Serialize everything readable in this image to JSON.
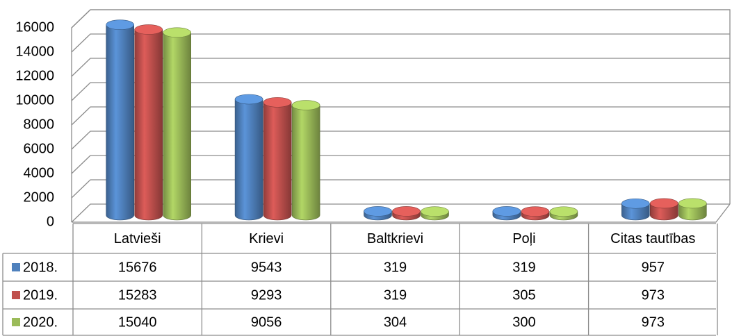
{
  "chart_data": {
    "type": "bar3d",
    "categories": [
      "Latvieši",
      "Krievi",
      "Baltkrievi",
      "Poļi",
      "Citas tautības"
    ],
    "series": [
      {
        "name": "2018.",
        "color": "#4f81bd",
        "values": [
          15676,
          9543,
          319,
          319,
          957
        ]
      },
      {
        "name": "2019.",
        "color": "#c0504d",
        "values": [
          15283,
          9293,
          319,
          305,
          973
        ]
      },
      {
        "name": "2020.",
        "color": "#9bbb59",
        "values": [
          15040,
          9056,
          304,
          300,
          973
        ]
      }
    ],
    "ylim": [
      0,
      16000
    ],
    "yticks": [
      0,
      2000,
      4000,
      6000,
      8000,
      10000,
      12000,
      14000,
      16000
    ],
    "grid": true
  }
}
